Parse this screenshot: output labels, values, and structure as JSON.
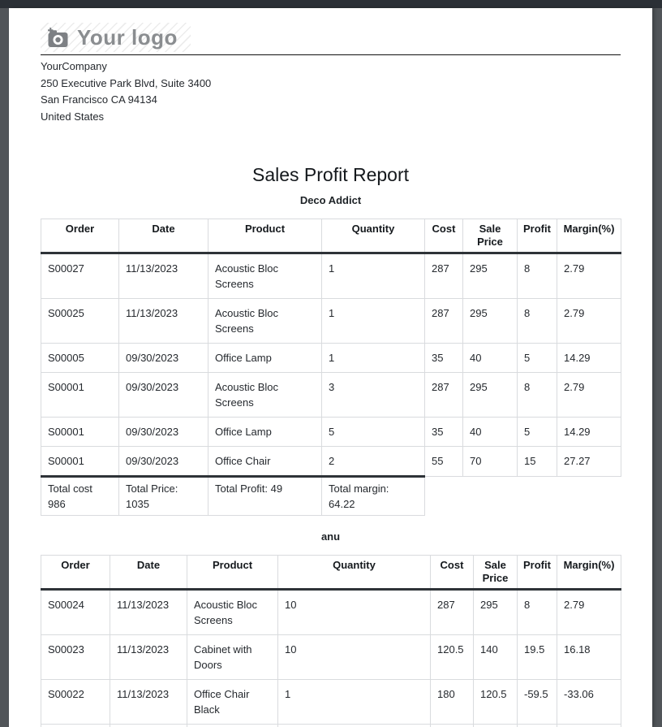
{
  "window": {
    "topbar_color": "#2b3036",
    "backdrop_color": "#515559"
  },
  "colors": {
    "page_bg": "#ffffff",
    "table_border": "#d9dbde",
    "heavy_border": "#2e3338",
    "logo_gray": "#8a8d90"
  },
  "logo": {
    "text": "Your logo",
    "icon": "camera-plus-icon"
  },
  "company": {
    "name": "YourCompany",
    "street": "250 Executive Park Blvd, Suite 3400",
    "city": "San Francisco CA 94134",
    "country": "United States"
  },
  "report": {
    "title": "Sales Profit Report"
  },
  "sections": [
    {
      "customer": "Deco Addict",
      "columns": [
        "Order",
        "Date",
        "Product",
        "Quantity",
        "Cost",
        "Sale Price",
        "Profit",
        "Margin(%)"
      ],
      "rows": [
        [
          "S00027",
          "11/13/2023",
          "Acoustic Bloc Screens",
          "1",
          "287",
          "295",
          "8",
          "2.79"
        ],
        [
          "S00025",
          "11/13/2023",
          "Acoustic Bloc Screens",
          "1",
          "287",
          "295",
          "8",
          "2.79"
        ],
        [
          "S00005",
          "09/30/2023",
          "Office Lamp",
          "1",
          "35",
          "40",
          "5",
          "14.29"
        ],
        [
          "S00001",
          "09/30/2023",
          "Acoustic Bloc Screens",
          "3",
          "287",
          "295",
          "8",
          "2.79"
        ],
        [
          "S00001",
          "09/30/2023",
          "Office Lamp",
          "5",
          "35",
          "40",
          "5",
          "14.29"
        ],
        [
          "S00001",
          "09/30/2023",
          "Office Chair",
          "2",
          "55",
          "70",
          "15",
          "27.27"
        ]
      ],
      "totals": [
        "Total cost 986",
        "Total Price: 1035",
        "Total Profit: 49",
        "Total margin: 64.22"
      ]
    },
    {
      "customer": "anu",
      "columns": [
        "Order",
        "Date",
        "Product",
        "Quantity",
        "Cost",
        "Sale Price",
        "Profit",
        "Margin(%)"
      ],
      "rows": [
        [
          "S00024",
          "11/13/2023",
          "Acoustic Bloc Screens",
          "10",
          "287",
          "295",
          "8",
          "2.79"
        ],
        [
          "S00023",
          "11/13/2023",
          "Cabinet with Doors",
          "10",
          "120.5",
          "140",
          "19.5",
          "16.18"
        ],
        [
          "S00022",
          "11/13/2023",
          "Office Chair Black",
          "1",
          "180",
          "120.5",
          "-59.5",
          "-33.06"
        ]
      ]
    }
  ]
}
